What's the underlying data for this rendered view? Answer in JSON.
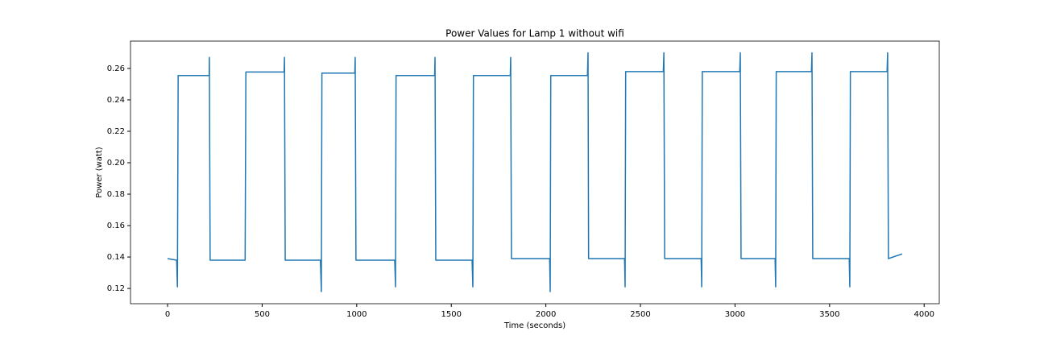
{
  "chart_data": {
    "type": "line",
    "title": "Power Values for Lamp 1 without wifi",
    "xlabel": "Time (seconds)",
    "ylabel": "Power (watt)",
    "color": "#1f77b4",
    "x": [
      0,
      48,
      52,
      56,
      220,
      221,
      225,
      410,
      414,
      616,
      618,
      622,
      808,
      813,
      816,
      990,
      992,
      996,
      1201,
      1205,
      1208,
      1412,
      1414,
      1418,
      1610,
      1614,
      1617,
      1812,
      1814,
      1818,
      2020,
      2023,
      2026,
      2220,
      2223,
      2226,
      2416,
      2419,
      2422,
      2621,
      2624,
      2628,
      2821,
      2824,
      2827,
      3025,
      3028,
      3032,
      3212,
      3215,
      3218,
      3404,
      3407,
      3411,
      3604,
      3607,
      3610,
      3804,
      3807,
      3811,
      3884
    ],
    "values": [
      0.139,
      0.138,
      0.121,
      0.2555,
      0.2555,
      0.267,
      0.138,
      0.138,
      0.2577,
      0.2577,
      0.267,
      0.138,
      0.138,
      0.118,
      0.257,
      0.257,
      0.267,
      0.138,
      0.138,
      0.121,
      0.2555,
      0.2555,
      0.267,
      0.138,
      0.138,
      0.121,
      0.2555,
      0.2555,
      0.267,
      0.139,
      0.139,
      0.118,
      0.2555,
      0.2555,
      0.27,
      0.139,
      0.139,
      0.121,
      0.258,
      0.258,
      0.27,
      0.139,
      0.139,
      0.121,
      0.258,
      0.258,
      0.27,
      0.139,
      0.139,
      0.121,
      0.258,
      0.258,
      0.27,
      0.139,
      0.139,
      0.121,
      0.258,
      0.258,
      0.27,
      0.139,
      0.142
    ],
    "xlim": [
      -196,
      4080
    ],
    "ylim": [
      0.1103,
      0.2774
    ],
    "xticks": [
      0,
      500,
      1000,
      1500,
      2000,
      2500,
      3000,
      3500,
      4000
    ],
    "yticks": [
      0.12,
      0.14,
      0.16,
      0.18,
      {
        "value": 0.2,
        "label": "0.20"
      },
      0.22,
      0.24,
      0.26
    ],
    "grid": false
  }
}
